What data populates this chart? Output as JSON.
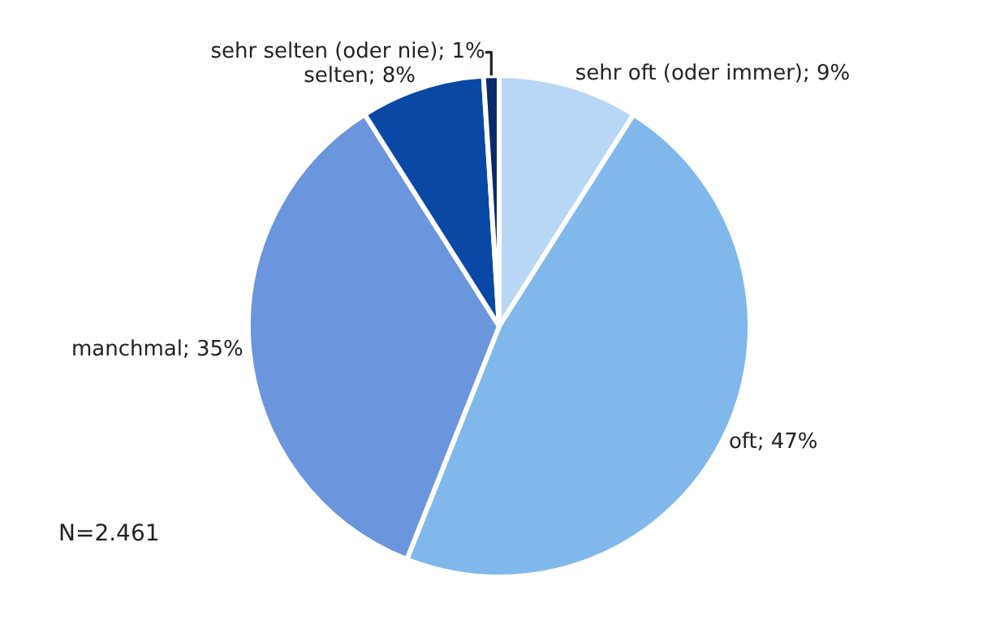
{
  "chart_data": {
    "type": "pie",
    "categories": [
      "sehr oft (oder immer)",
      "oft",
      "manchmal",
      "selten",
      "sehr selten (oder nie)"
    ],
    "values": [
      9,
      47,
      35,
      8,
      1
    ],
    "value_labels": [
      "9%",
      "47%",
      "35%",
      "8%",
      "1%"
    ],
    "colors": [
      "#b7d7f4",
      "#80b8eb",
      "#6b95dc",
      "#0a48a6",
      "#0b2a6a"
    ],
    "annotations": [
      "N=2.461"
    ],
    "legend": false
  }
}
